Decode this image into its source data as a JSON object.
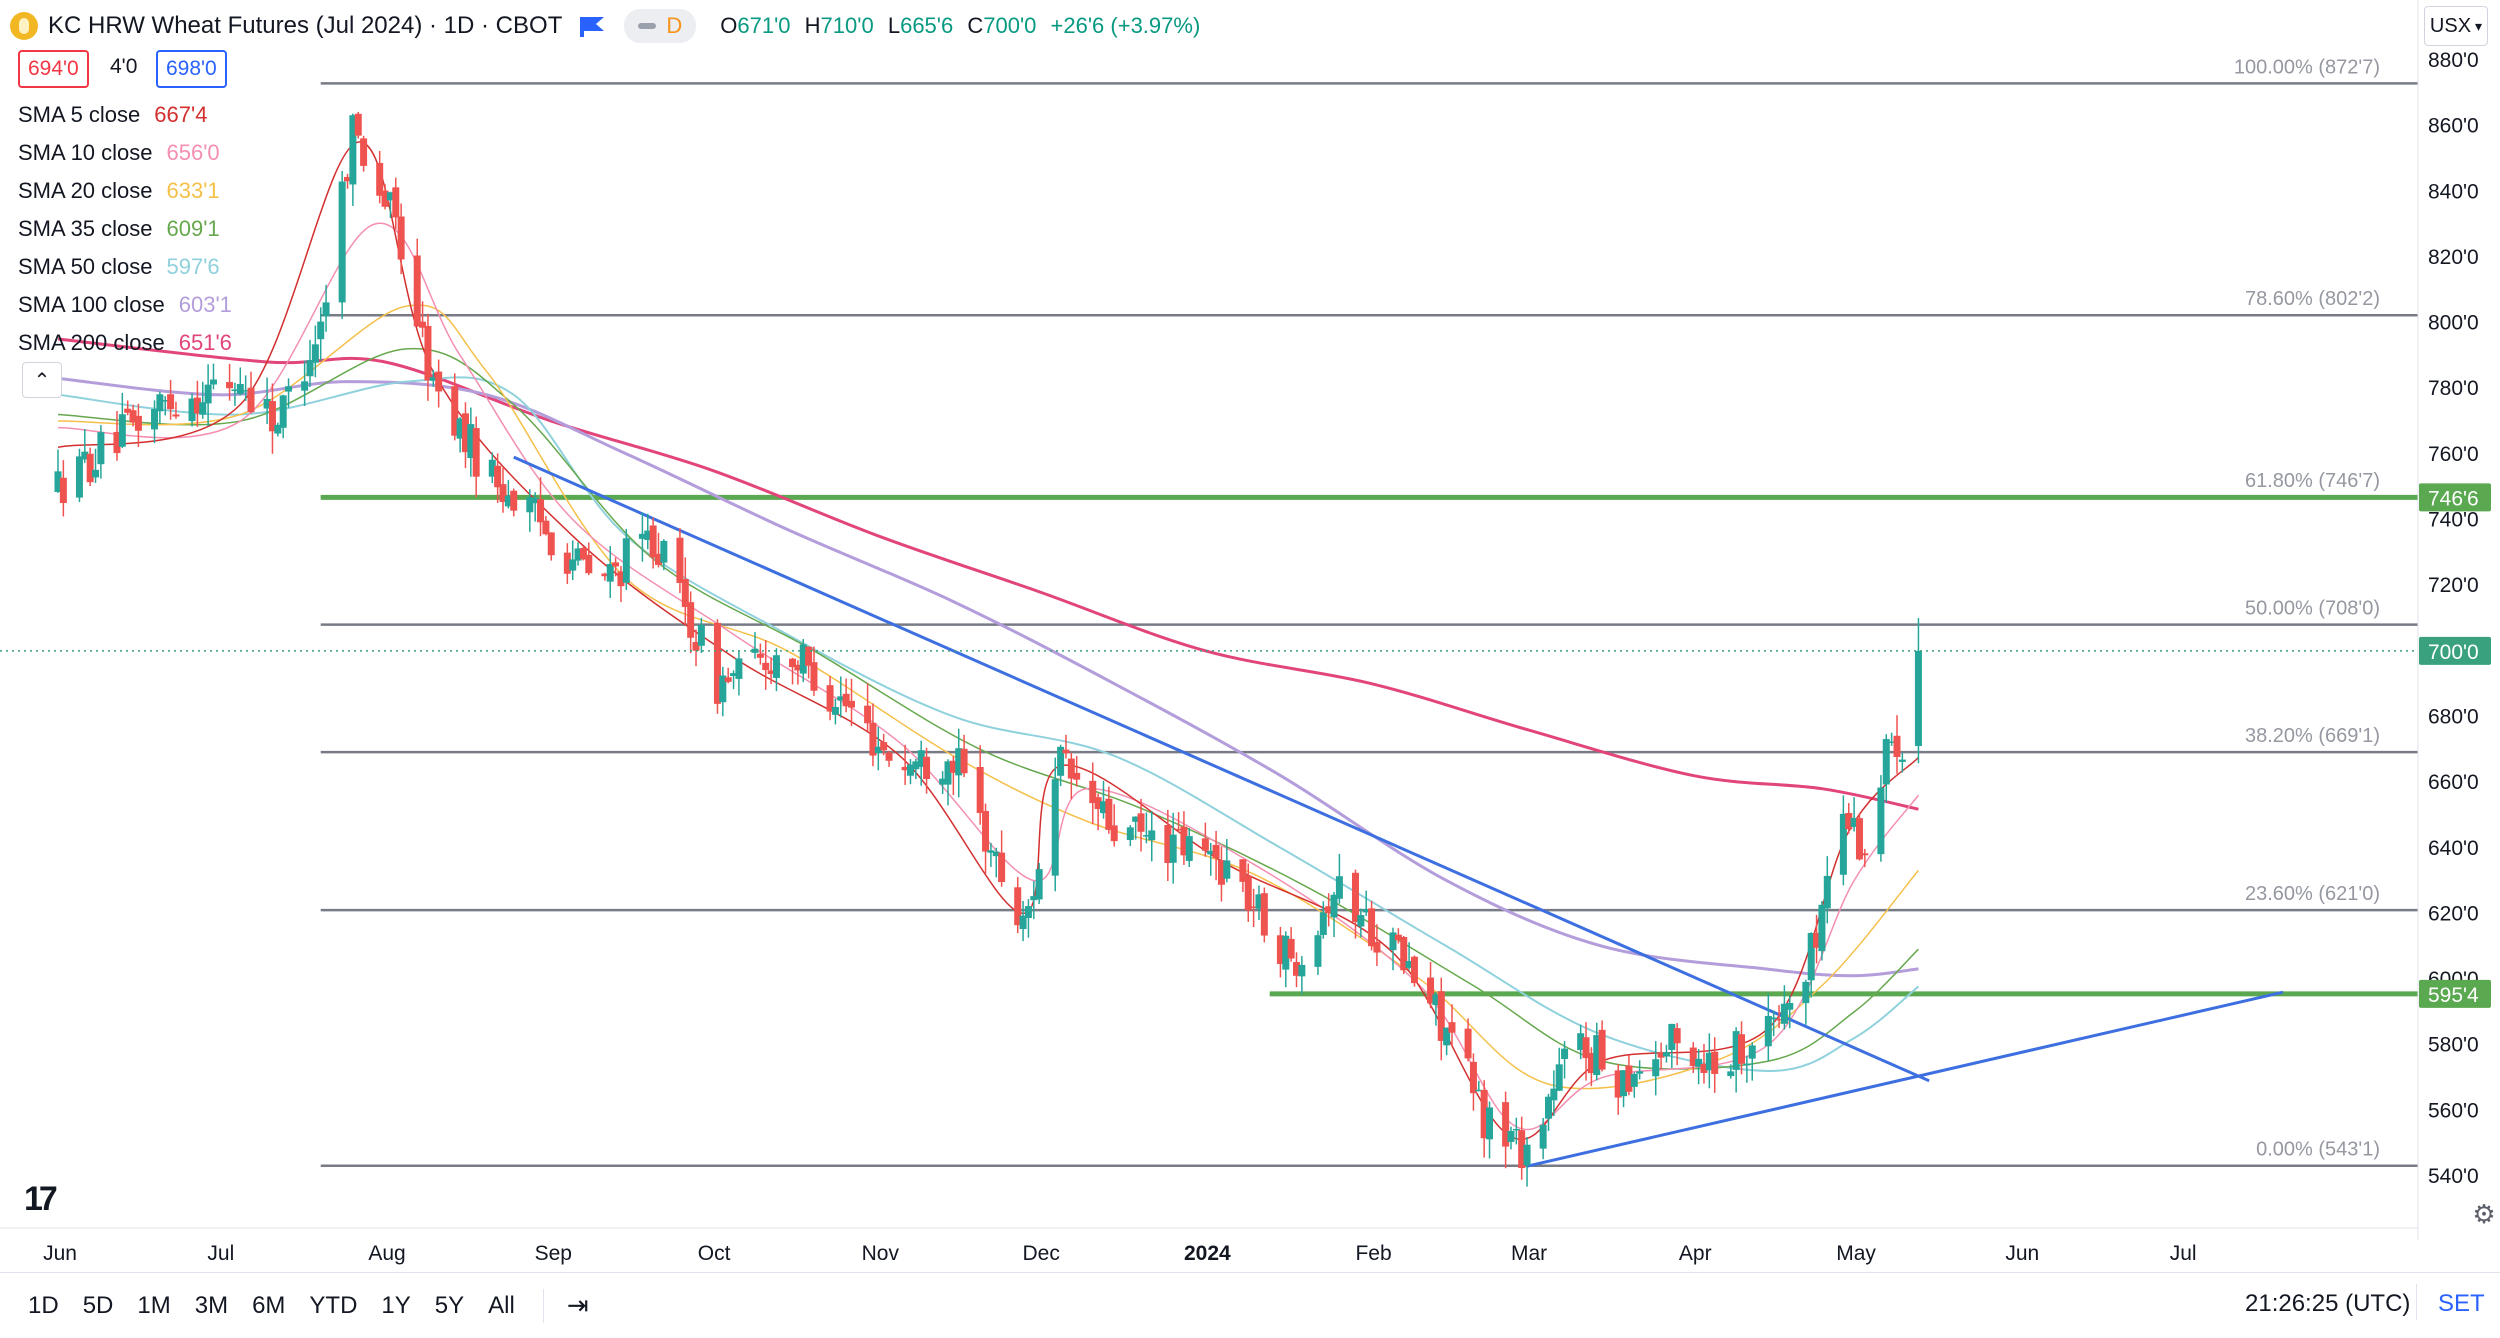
{
  "header": {
    "title": "KC HRW Wheat Futures (Jul 2024) · 1D · CBOT",
    "d_badge": "D",
    "o_label": "O",
    "o_value": "671'0",
    "h_label": "H",
    "h_value": "710'0",
    "l_label": "L",
    "l_value": "665'6",
    "c_label": "C",
    "c_value": "700'0",
    "change": "+26'6 (+3.97%)"
  },
  "quote": {
    "bid": "694'0",
    "spread": "4'0",
    "ask": "698'0"
  },
  "currency": "USX",
  "legend": [
    {
      "label": "SMA 5 close",
      "value": "667'4",
      "color": "#d32f2f"
    },
    {
      "label": "SMA 10 close",
      "value": "656'0",
      "color": "#f48fb1"
    },
    {
      "label": "SMA 20 close",
      "value": "633'1",
      "color": "#f5c04a"
    },
    {
      "label": "SMA 35 close",
      "value": "609'1",
      "color": "#66a84d"
    },
    {
      "label": "SMA 50 close",
      "value": "597'6",
      "color": "#8fd1dc"
    },
    {
      "label": "SMA 100 close",
      "value": "603'1",
      "color": "#b39ddb"
    },
    {
      "label": "SMA 200 close",
      "value": "651'6",
      "color": "#e2457a"
    }
  ],
  "price_scale": {
    "ticks": [
      "880'0",
      "860'0",
      "840'0",
      "820'0",
      "800'0",
      "780'0",
      "760'0",
      "740'0",
      "720'0",
      "700'0",
      "680'0",
      "660'0",
      "640'0",
      "620'0",
      "600'0",
      "580'0",
      "560'0",
      "540'0"
    ],
    "badges": [
      {
        "label": "746'6",
        "price": 746.75,
        "color": "#5aa84f"
      },
      {
        "label": "700'0",
        "price": 700,
        "color": "#3aa17e"
      },
      {
        "label": "595'4",
        "price": 595.5,
        "color": "#5aa84f"
      }
    ]
  },
  "time_axis": [
    "Jun",
    "Jul",
    "Aug",
    "Sep",
    "Oct",
    "Nov",
    "Dec",
    "2024",
    "Feb",
    "Mar",
    "Apr",
    "May",
    "Jun",
    "Jul"
  ],
  "fib_levels": [
    {
      "label": "100.00% (872'7)",
      "price": 872.875
    },
    {
      "label": "78.60% (802'2)",
      "price": 802.25
    },
    {
      "label": "61.80% (746'7)",
      "price": 746.875
    },
    {
      "label": "50.00% (708'0)",
      "price": 708
    },
    {
      "label": "38.20% (669'1)",
      "price": 669.125
    },
    {
      "label": "23.60% (621'0)",
      "price": 621
    },
    {
      "label": "0.00% (543'1)",
      "price": 543.125
    }
  ],
  "colors": {
    "up": "#26a69a",
    "down": "#ef5350",
    "fib": "#787b86",
    "support": "#5aa84f",
    "trendline": "#3d6fe0"
  },
  "ranges": [
    "1D",
    "5D",
    "1M",
    "3M",
    "6M",
    "YTD",
    "1Y",
    "5Y",
    "All"
  ],
  "clock": "21:26:25 (UTC)",
  "set_label": "SET",
  "chart_data": {
    "type": "candlestick",
    "title": "KC HRW Wheat Futures (Jul 2024) · 1D · CBOT",
    "ylim": [
      540,
      880
    ],
    "x_range": [
      "2023-06-01",
      "2024-07-31"
    ],
    "last_date": "2024-05-13",
    "ohlc_waypoints": [
      {
        "date": "2023-06-01",
        "close": 750
      },
      {
        "date": "2023-06-20",
        "close": 775
      },
      {
        "date": "2023-07-05",
        "close": 782
      },
      {
        "date": "2023-07-12",
        "close": 770
      },
      {
        "date": "2023-07-20",
        "close": 800
      },
      {
        "date": "2023-07-26",
        "close": 860
      },
      {
        "date": "2023-08-03",
        "close": 830
      },
      {
        "date": "2023-08-10",
        "close": 780
      },
      {
        "date": "2023-08-20",
        "close": 755
      },
      {
        "date": "2023-08-28",
        "close": 742
      },
      {
        "date": "2023-09-10",
        "close": 720
      },
      {
        "date": "2023-09-20",
        "close": 735
      },
      {
        "date": "2023-10-02",
        "close": 690
      },
      {
        "date": "2023-10-15",
        "close": 700
      },
      {
        "date": "2023-10-25",
        "close": 685
      },
      {
        "date": "2023-11-05",
        "close": 665
      },
      {
        "date": "2023-11-15",
        "close": 668
      },
      {
        "date": "2023-11-28",
        "close": 615
      },
      {
        "date": "2023-12-05",
        "close": 665
      },
      {
        "date": "2023-12-15",
        "close": 645
      },
      {
        "date": "2023-12-28",
        "close": 640
      },
      {
        "date": "2024-01-05",
        "close": 635
      },
      {
        "date": "2024-01-17",
        "close": 605
      },
      {
        "date": "2024-01-25",
        "close": 628
      },
      {
        "date": "2024-02-05",
        "close": 610
      },
      {
        "date": "2024-02-15",
        "close": 585
      },
      {
        "date": "2024-02-22",
        "close": 558
      },
      {
        "date": "2024-03-01",
        "close": 548
      },
      {
        "date": "2024-03-10",
        "close": 582
      },
      {
        "date": "2024-03-18",
        "close": 570
      },
      {
        "date": "2024-03-28",
        "close": 580
      },
      {
        "date": "2024-04-05",
        "close": 575
      },
      {
        "date": "2024-04-15",
        "close": 585
      },
      {
        "date": "2024-04-22",
        "close": 600
      },
      {
        "date": "2024-04-29",
        "close": 652
      },
      {
        "date": "2024-05-03",
        "close": 640
      },
      {
        "date": "2024-05-08",
        "close": 675
      },
      {
        "date": "2024-05-10",
        "close": 673
      },
      {
        "date": "2024-05-13",
        "close": 700
      }
    ],
    "sma_series": [
      {
        "name": "SMA 200 close",
        "color": "#e2457a",
        "width": 3,
        "points": [
          [
            "2023-06-01",
            795
          ],
          [
            "2023-07-10",
            788
          ],
          [
            "2023-08-01",
            788
          ],
          [
            "2023-09-01",
            770
          ],
          [
            "2023-10-01",
            755
          ],
          [
            "2023-11-01",
            735
          ],
          [
            "2023-12-01",
            718
          ],
          [
            "2024-01-01",
            700
          ],
          [
            "2024-02-01",
            690
          ],
          [
            "2024-03-01",
            676
          ],
          [
            "2024-04-01",
            662
          ],
          [
            "2024-04-25",
            658
          ],
          [
            "2024-05-13",
            651.75
          ]
        ]
      },
      {
        "name": "SMA 100 close",
        "color": "#b39ddb",
        "width": 3,
        "points": [
          [
            "2023-06-01",
            783
          ],
          [
            "2023-07-01",
            778
          ],
          [
            "2023-07-25",
            782
          ],
          [
            "2023-08-20",
            778
          ],
          [
            "2023-09-15",
            760
          ],
          [
            "2023-10-15",
            737
          ],
          [
            "2023-11-15",
            715
          ],
          [
            "2023-12-15",
            690
          ],
          [
            "2024-01-15",
            662
          ],
          [
            "2024-02-15",
            630
          ],
          [
            "2024-03-15",
            610
          ],
          [
            "2024-04-15",
            603
          ],
          [
            "2024-05-01",
            601
          ],
          [
            "2024-05-13",
            603.1
          ]
        ]
      },
      {
        "name": "SMA 50 close",
        "color": "#8fd1dc",
        "width": 2,
        "points": [
          [
            "2023-06-01",
            778
          ],
          [
            "2023-07-05",
            772
          ],
          [
            "2023-08-05",
            782
          ],
          [
            "2023-08-25",
            778
          ],
          [
            "2023-09-15",
            735
          ],
          [
            "2023-10-15",
            705
          ],
          [
            "2023-11-15",
            680
          ],
          [
            "2023-12-15",
            668
          ],
          [
            "2024-01-15",
            640
          ],
          [
            "2024-02-15",
            610
          ],
          [
            "2024-03-15",
            583
          ],
          [
            "2024-04-15",
            572
          ],
          [
            "2024-05-01",
            582
          ],
          [
            "2024-05-13",
            597.75
          ]
        ]
      },
      {
        "name": "SMA 35 close",
        "color": "#66a84d",
        "width": 1.5,
        "points": [
          [
            "2023-06-01",
            772
          ],
          [
            "2023-07-05",
            770
          ],
          [
            "2023-08-05",
            792
          ],
          [
            "2023-08-25",
            775
          ],
          [
            "2023-09-20",
            728
          ],
          [
            "2023-10-20",
            700
          ],
          [
            "2023-11-20",
            670
          ],
          [
            "2023-12-20",
            652
          ],
          [
            "2024-01-20",
            628
          ],
          [
            "2024-02-20",
            598
          ],
          [
            "2024-03-15",
            575
          ],
          [
            "2024-04-15",
            575
          ],
          [
            "2024-05-01",
            590
          ],
          [
            "2024-05-13",
            609.1
          ]
        ]
      },
      {
        "name": "SMA 20 close",
        "color": "#f5c04a",
        "width": 1.5,
        "points": [
          [
            "2023-06-01",
            770
          ],
          [
            "2023-07-05",
            772
          ],
          [
            "2023-08-05",
            805
          ],
          [
            "2023-08-20",
            785
          ],
          [
            "2023-09-15",
            722
          ],
          [
            "2023-10-15",
            700
          ],
          [
            "2023-11-15",
            668
          ],
          [
            "2023-12-10",
            648
          ],
          [
            "2024-01-10",
            632
          ],
          [
            "2024-02-10",
            600
          ],
          [
            "2024-03-05",
            568
          ],
          [
            "2024-04-05",
            575
          ],
          [
            "2024-04-25",
            598
          ],
          [
            "2024-05-13",
            633.1
          ]
        ]
      },
      {
        "name": "SMA 10 close",
        "color": "#f48fb1",
        "width": 1.5,
        "points": [
          [
            "2023-06-01",
            768
          ],
          [
            "2023-07-05",
            770
          ],
          [
            "2023-07-30",
            830
          ],
          [
            "2023-08-15",
            790
          ],
          [
            "2023-09-05",
            740
          ],
          [
            "2023-10-05",
            705
          ],
          [
            "2023-11-05",
            672
          ],
          [
            "2023-11-30",
            630
          ],
          [
            "2023-12-10",
            658
          ],
          [
            "2024-01-10",
            635
          ],
          [
            "2024-02-10",
            598
          ],
          [
            "2024-02-28",
            555
          ],
          [
            "2024-03-15",
            570
          ],
          [
            "2024-04-15",
            580
          ],
          [
            "2024-05-01",
            630
          ],
          [
            "2024-05-13",
            656
          ]
        ]
      },
      {
        "name": "SMA 5 close",
        "color": "#d32f2f",
        "width": 1.5,
        "points": [
          [
            "2023-06-01",
            762
          ],
          [
            "2023-07-05",
            775
          ],
          [
            "2023-07-27",
            855
          ],
          [
            "2023-08-10",
            785
          ],
          [
            "2023-09-05",
            735
          ],
          [
            "2023-10-05",
            698
          ],
          [
            "2023-11-05",
            668
          ],
          [
            "2023-11-28",
            620
          ],
          [
            "2023-12-05",
            665
          ],
          [
            "2024-01-05",
            635
          ],
          [
            "2024-02-05",
            608
          ],
          [
            "2024-02-27",
            552
          ],
          [
            "2024-03-15",
            575
          ],
          [
            "2024-04-15",
            585
          ],
          [
            "2024-04-30",
            645
          ],
          [
            "2024-05-13",
            667.5
          ]
        ]
      }
    ],
    "trendlines": [
      {
        "points": [
          [
            "2023-08-25",
            759
          ],
          [
            "2024-05-15",
            569
          ]
        ],
        "color": "#3d6fe0"
      },
      {
        "points": [
          [
            "2024-03-01",
            543
          ],
          [
            "2024-07-20",
            596
          ]
        ],
        "color": "#3d6fe0"
      }
    ],
    "support_segments": [
      {
        "from": "2023-07-20",
        "to": "2024-07-20",
        "price": 746.75
      },
      {
        "from": "2024-01-13",
        "to": "2024-07-20",
        "price": 595.5
      }
    ]
  }
}
